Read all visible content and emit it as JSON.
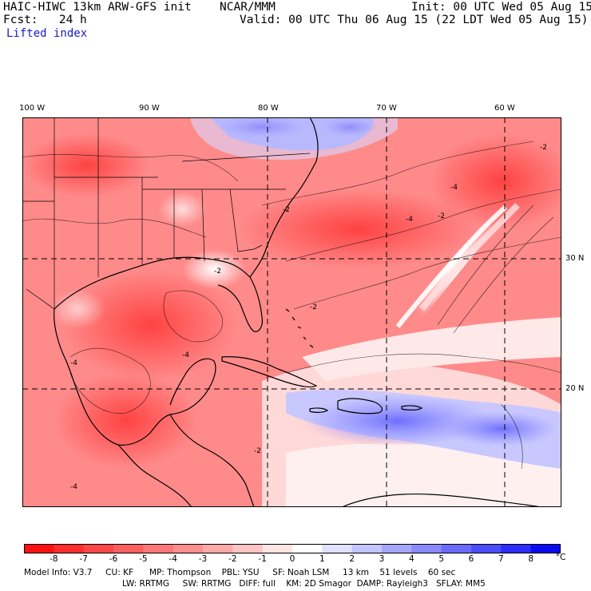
{
  "header": {
    "model_title": "HAIC-HIWC 13km ARW-GFS init",
    "center": "NCAR/MMM",
    "init": "Init: 00 UTC Wed 05 Aug 15",
    "fcst": "Fcst:   24 h",
    "valid": "Valid: 00 UTC Thu 06 Aug 15 (22 LDT Wed 05 Aug 15)",
    "field": "Lifted index"
  },
  "axes": {
    "lon_labels": [
      "100 W",
      "90 W",
      "80 W",
      "70 W",
      "60 W"
    ],
    "lat_labels": [
      "30 N",
      "20 N"
    ]
  },
  "colorbar": {
    "ticks": [
      "-8",
      "-7",
      "-6",
      "-5",
      "-4",
      "-3",
      "-2",
      "-1",
      "0",
      "1",
      "2",
      "3",
      "4",
      "5",
      "6",
      "7",
      "8"
    ],
    "unit": "°C",
    "colors": [
      "#ff1010",
      "#ff2c2c",
      "#ff4646",
      "#ff5e5e",
      "#ff7676",
      "#ff8e8e",
      "#ffa8a8",
      "#ffc4c4",
      "#ffe4e4",
      "#ffffff",
      "#e0e0ff",
      "#c4c4ff",
      "#a6a6ff",
      "#8888ff",
      "#6a6aff",
      "#4c4cff",
      "#2c2cff",
      "#0a0aee"
    ]
  },
  "model_info": {
    "line1": "Model Info: V3.7     CU: KF      MP: Thompson    PBL: YSU     SF: Noah LSM     13 km    51 levels    60 sec",
    "line2": "LW: RRTMG     SW: RRTMG   DIFF: full    KM: 2D Smagor  DAMP: Rayleigh3   SFLAY: MM5"
  }
}
